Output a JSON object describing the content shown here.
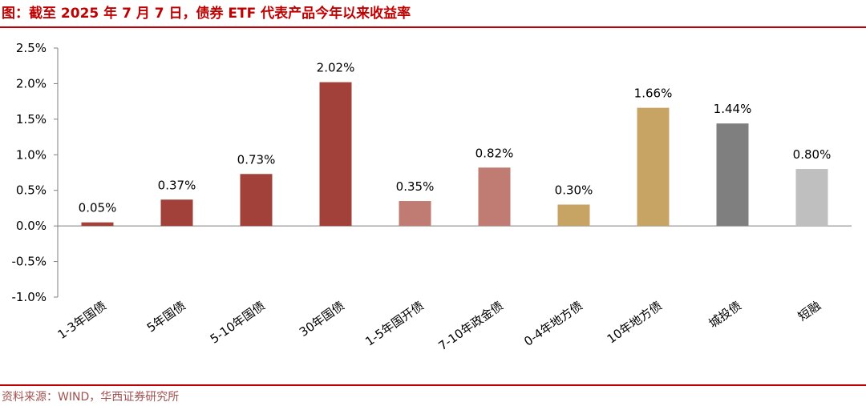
{
  "title": "图：截至 2025 年 7 月 7 日，债券 ETF 代表产品今年以来收益率",
  "source": "资料来源：WIND，华西证券研究所",
  "colors": {
    "accent": "#c00000",
    "dark_red": "#a2413a",
    "light_red": "#c07c72",
    "gold": "#c8a464",
    "dark_gray": "#7f7f7f",
    "light_gray": "#bfbfbf"
  },
  "chart_data": {
    "type": "bar",
    "categories": [
      "1-3年国债",
      "5年国债",
      "5-10年国债",
      "30年国债",
      "1-5年国开债",
      "7-10年政金债",
      "0-4年地方债",
      "10年地方债",
      "城投债",
      "短融"
    ],
    "values": [
      0.05,
      0.37,
      0.73,
      2.02,
      0.35,
      0.82,
      0.3,
      1.66,
      1.44,
      0.8
    ],
    "data_labels": [
      "0.05%",
      "0.37%",
      "0.73%",
      "2.02%",
      "0.35%",
      "0.82%",
      "0.30%",
      "1.66%",
      "1.44%",
      "0.80%"
    ],
    "bar_colors": [
      "#a2413a",
      "#a2413a",
      "#a2413a",
      "#a2413a",
      "#c07c72",
      "#c07c72",
      "#c8a464",
      "#c8a464",
      "#7f7f7f",
      "#bfbfbf"
    ],
    "yticks": [
      -1.0,
      -0.5,
      0.0,
      0.5,
      1.0,
      1.5,
      2.0,
      2.5
    ],
    "ytick_labels": [
      "-1.0%",
      "-0.5%",
      "0.0%",
      "0.5%",
      "1.0%",
      "1.5%",
      "2.0%",
      "2.5%"
    ],
    "ylim": [
      -1.0,
      2.5
    ],
    "xlabel": "",
    "ylabel": "",
    "grid": false,
    "legend": "none"
  }
}
